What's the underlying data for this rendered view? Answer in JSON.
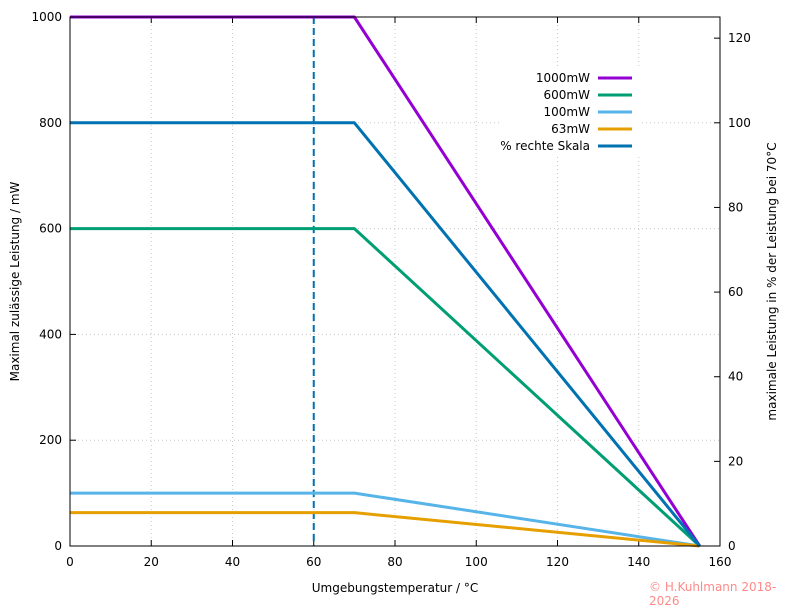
{
  "chart_data": {
    "type": "line",
    "xlabel": "Umgebungstemperatur / °C",
    "ylabel": "Maximal zulässige Leistung / mW",
    "y2label": "maximale Leistung in % der Leistung bei 70°C",
    "xlim": [
      0,
      160
    ],
    "ylim": [
      0,
      1000
    ],
    "y2lim": [
      0,
      125
    ],
    "xticks": [
      0,
      20,
      40,
      60,
      80,
      100,
      120,
      140,
      160
    ],
    "yticks": [
      0,
      200,
      400,
      600,
      800,
      1000
    ],
    "y2ticks": [
      0,
      20,
      40,
      60,
      80,
      100,
      120
    ],
    "grid": true,
    "legend_position": "top-right",
    "series": [
      {
        "name": "1000mW",
        "color": "#9400d3",
        "axis": "left",
        "x": [
          0,
          70,
          155
        ],
        "y": [
          1000,
          1000,
          0
        ]
      },
      {
        "name": "600mW",
        "color": "#009e73",
        "axis": "left",
        "x": [
          0,
          70,
          155
        ],
        "y": [
          600,
          600,
          0
        ]
      },
      {
        "name": "100mW",
        "color": "#56b4e9",
        "axis": "left",
        "x": [
          0,
          70,
          155
        ],
        "y": [
          100,
          100,
          0
        ]
      },
      {
        "name": "63mW",
        "color": "#e69f00",
        "axis": "left",
        "x": [
          0,
          70,
          155
        ],
        "y": [
          63,
          63,
          0
        ]
      },
      {
        "name": "% rechte Skala",
        "color": "#0072b2",
        "axis": "right",
        "x": [
          0,
          70,
          155
        ],
        "y": [
          100,
          100,
          0
        ]
      }
    ],
    "vline": {
      "x": 60,
      "color": "#0072b2",
      "style": "dashed"
    }
  },
  "copyright": "© H.Kuhlmann 2018-2026"
}
